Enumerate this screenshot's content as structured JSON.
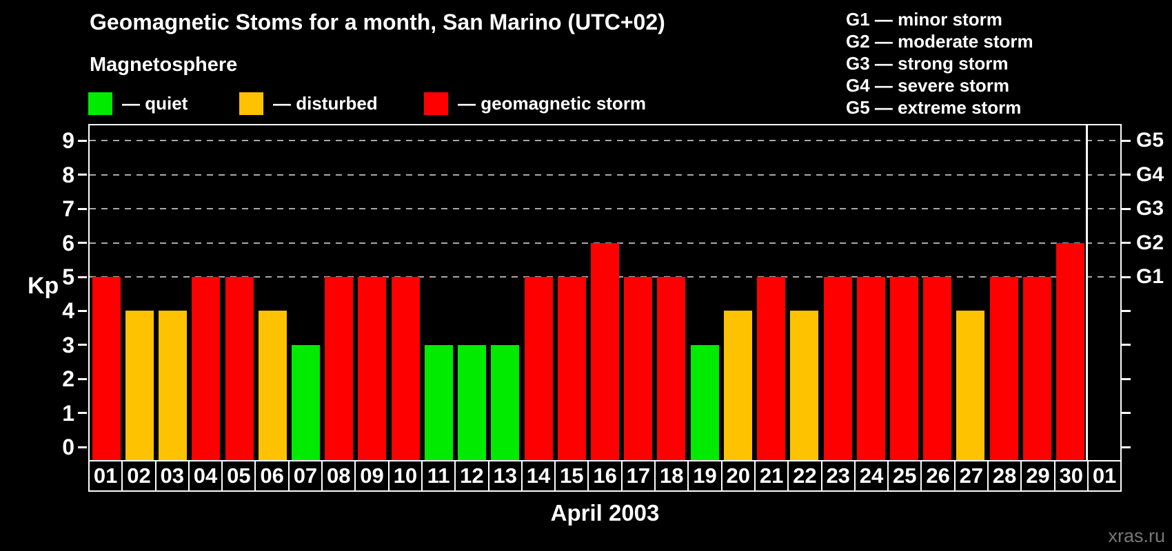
{
  "header": {
    "title": "Geomagnetic Stoms for a month, San Marino (UTC+02)",
    "subtitle": "Magnetosphere"
  },
  "legend": {
    "items": [
      {
        "key": "quiet",
        "label": "— quiet",
        "color": "#00eb00"
      },
      {
        "key": "disturbed",
        "label": "— disturbed",
        "color": "#ffc200"
      },
      {
        "key": "storm",
        "label": "— geomagnetic storm",
        "color": "#ff0000"
      }
    ]
  },
  "g_scale_legend": {
    "items": [
      "G1 — minor storm",
      "G2 — moderate storm",
      "G3 — strong storm",
      "G4 — severe storm",
      "G5 — extreme storm"
    ]
  },
  "axes": {
    "y_left_label": "Kp",
    "y_left_ticks": [
      0,
      1,
      2,
      3,
      4,
      5,
      6,
      7,
      8,
      9
    ],
    "y_right_labels": [
      {
        "kp": 5,
        "label": "G1"
      },
      {
        "kp": 6,
        "label": "G2"
      },
      {
        "kp": 7,
        "label": "G3"
      },
      {
        "kp": 8,
        "label": "G4"
      },
      {
        "kp": 9,
        "label": "G5"
      }
    ],
    "x_title": "April 2003"
  },
  "watermark": "xras.ru",
  "colors": {
    "quiet": "#00eb00",
    "disturbed": "#ffc200",
    "storm": "#ff0000",
    "background": "#000000",
    "grid": "#aaaaaa",
    "axis": "#ffffff"
  },
  "chart_data": {
    "type": "bar",
    "title": "Geomagnetic Stoms for a month, San Marino (UTC+02)",
    "xlabel": "April 2003",
    "ylabel": "Kp",
    "ylim": [
      0,
      9
    ],
    "grid_levels": [
      5,
      6,
      7,
      8,
      9
    ],
    "legend_position": "top-left",
    "categories": [
      "01",
      "02",
      "03",
      "04",
      "05",
      "06",
      "07",
      "08",
      "09",
      "10",
      "11",
      "12",
      "13",
      "14",
      "15",
      "16",
      "17",
      "18",
      "19",
      "20",
      "21",
      "22",
      "23",
      "24",
      "25",
      "26",
      "27",
      "28",
      "29",
      "30",
      "01"
    ],
    "days": [
      {
        "day": "01",
        "kp": 5,
        "condition": "storm"
      },
      {
        "day": "02",
        "kp": 4,
        "condition": "disturbed"
      },
      {
        "day": "03",
        "kp": 4,
        "condition": "disturbed"
      },
      {
        "day": "04",
        "kp": 5,
        "condition": "storm"
      },
      {
        "day": "05",
        "kp": 5,
        "condition": "storm"
      },
      {
        "day": "06",
        "kp": 4,
        "condition": "disturbed"
      },
      {
        "day": "07",
        "kp": 3,
        "condition": "quiet"
      },
      {
        "day": "08",
        "kp": 5,
        "condition": "storm"
      },
      {
        "day": "09",
        "kp": 5,
        "condition": "storm"
      },
      {
        "day": "10",
        "kp": 5,
        "condition": "storm"
      },
      {
        "day": "11",
        "kp": 3,
        "condition": "quiet"
      },
      {
        "day": "12",
        "kp": 3,
        "condition": "quiet"
      },
      {
        "day": "13",
        "kp": 3,
        "condition": "quiet"
      },
      {
        "day": "14",
        "kp": 5,
        "condition": "storm"
      },
      {
        "day": "15",
        "kp": 5,
        "condition": "storm"
      },
      {
        "day": "16",
        "kp": 6,
        "condition": "storm"
      },
      {
        "day": "17",
        "kp": 5,
        "condition": "storm"
      },
      {
        "day": "18",
        "kp": 5,
        "condition": "storm"
      },
      {
        "day": "19",
        "kp": 3,
        "condition": "quiet"
      },
      {
        "day": "20",
        "kp": 4,
        "condition": "disturbed"
      },
      {
        "day": "21",
        "kp": 5,
        "condition": "storm"
      },
      {
        "day": "22",
        "kp": 4,
        "condition": "disturbed"
      },
      {
        "day": "23",
        "kp": 5,
        "condition": "storm"
      },
      {
        "day": "24",
        "kp": 5,
        "condition": "storm"
      },
      {
        "day": "25",
        "kp": 5,
        "condition": "storm"
      },
      {
        "day": "26",
        "kp": 5,
        "condition": "storm"
      },
      {
        "day": "27",
        "kp": 4,
        "condition": "disturbed"
      },
      {
        "day": "28",
        "kp": 5,
        "condition": "storm"
      },
      {
        "day": "29",
        "kp": 5,
        "condition": "storm"
      },
      {
        "day": "30",
        "kp": 6,
        "condition": "storm"
      },
      {
        "day": "01",
        "kp": null,
        "condition": null
      }
    ]
  }
}
